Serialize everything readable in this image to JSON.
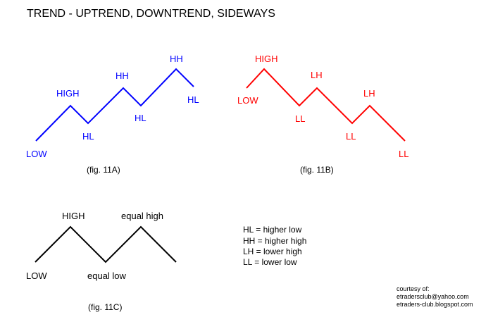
{
  "title": "TREND - UPTREND, DOWNTREND, SIDEWAYS",
  "colors": {
    "uptrend": "#0000ff",
    "downtrend": "#ff0000",
    "sideways": "#000000"
  },
  "figures": {
    "uptrend": {
      "caption": "(fig. 11A)",
      "labels": [
        "LOW",
        "HIGH",
        "HL",
        "HH",
        "HL",
        "HH",
        "HL"
      ]
    },
    "downtrend": {
      "caption": "(fig. 11B)",
      "labels": [
        "LOW",
        "HIGH",
        "LL",
        "LH",
        "LL",
        "LH",
        "LL"
      ]
    },
    "sideways": {
      "caption": "(fig. 11C)",
      "labels": [
        "LOW",
        "HIGH",
        "equal low",
        "equal high"
      ]
    }
  },
  "legend": [
    "HL = higher low",
    "HH = higher high",
    "LH = lower high",
    "LL = lower low"
  ],
  "credit": {
    "line1": "courtesy of:",
    "line2": "etradersclub@yahoo.com",
    "line3": "etraders-club.blogspot.com"
  }
}
